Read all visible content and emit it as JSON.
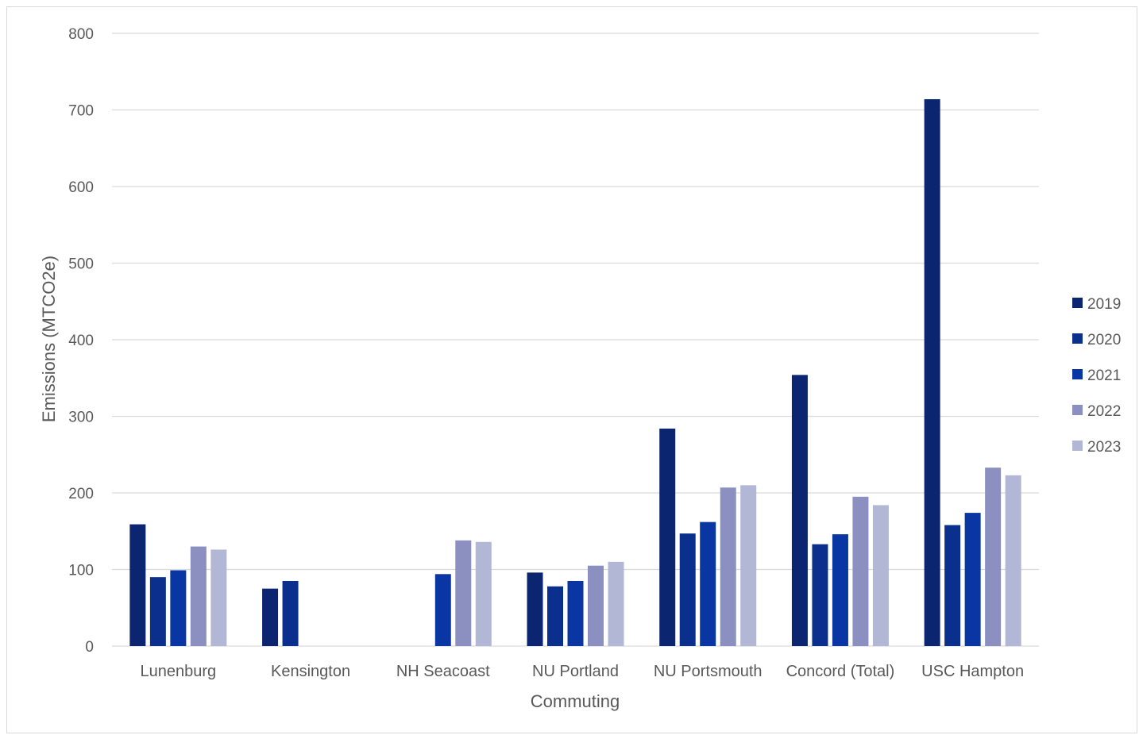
{
  "chart_data": {
    "type": "bar",
    "title": "",
    "xlabel": "Commuting",
    "ylabel": "Emissions (MTCO2e)",
    "ylim": [
      0,
      800
    ],
    "yticks": [
      0,
      100,
      200,
      300,
      400,
      500,
      600,
      700,
      800
    ],
    "grid": true,
    "legend_position": "right",
    "categories": [
      "Lunenburg",
      "Kensington",
      "NH Seacoast",
      "NU Portland",
      "NU Portsmouth",
      "Concord (Total)",
      "USC Hampton"
    ],
    "series": [
      {
        "name": "2019",
        "color": "#0b2570",
        "values": [
          159,
          75,
          null,
          96,
          284,
          354,
          714
        ]
      },
      {
        "name": "2020",
        "color": "#0b2f8c",
        "values": [
          90,
          85,
          null,
          78,
          147,
          133,
          158
        ]
      },
      {
        "name": "2021",
        "color": "#0a36a3",
        "values": [
          99,
          null,
          94,
          85,
          162,
          146,
          174
        ]
      },
      {
        "name": "2022",
        "color": "#8b90c0",
        "values": [
          130,
          null,
          138,
          105,
          207,
          195,
          233
        ]
      },
      {
        "name": "2023",
        "color": "#b3b7d6",
        "values": [
          126,
          null,
          136,
          110,
          210,
          184,
          223
        ]
      }
    ]
  }
}
